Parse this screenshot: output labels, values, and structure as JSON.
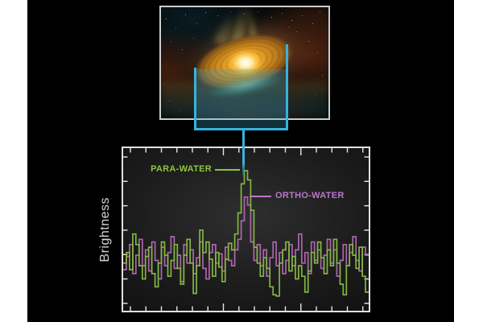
{
  "scene": {
    "page_background": "#ffffff",
    "figure_background": "#000000",
    "zoom_indicator_color": "#38b2dc",
    "zoom_indicator_fill": "rgba(56,170,205,0.28)",
    "plot_border_color": "#e0e0e0",
    "image_border_color": "#cdcdcd"
  },
  "chart_data": {
    "type": "line",
    "style": "step-histogram",
    "title": "",
    "xlabel": "",
    "ylabel": "Brightness",
    "grid": false,
    "x_tick_labels": [],
    "y_tick_labels": [],
    "ylim": [
      0,
      1.1
    ],
    "axes": {
      "x_ticks": 16,
      "y_ticks": 7,
      "major_x_ticks": [
        6,
        11
      ],
      "tick_color": "#e8e8e8"
    },
    "annotations": [
      {
        "text": "PARA-WATER",
        "color": "#8dc63f",
        "points_to": "green peak"
      },
      {
        "text": "ORTHO-WATER",
        "color": "#bb77cc",
        "points_to": "purple peak"
      }
    ],
    "series": [
      {
        "name": "PARA-WATER",
        "color": "#83b541",
        "values": [
          0.3,
          0.38,
          0.25,
          0.52,
          0.44,
          0.28,
          0.18,
          0.35,
          0.42,
          0.22,
          0.12,
          0.3,
          0.46,
          0.36,
          0.2,
          0.32,
          0.44,
          0.26,
          0.14,
          0.36,
          0.48,
          0.3,
          0.07,
          0.28,
          0.55,
          0.38,
          0.46,
          0.33,
          0.2,
          0.38,
          0.27,
          0.16,
          0.33,
          0.45,
          0.4,
          0.52,
          0.68,
          0.9,
          1.0,
          0.93,
          0.7,
          0.42,
          0.3,
          0.2,
          0.34,
          0.26,
          0.12,
          0.06,
          0.05,
          0.3,
          0.4,
          0.46,
          0.24,
          0.35,
          0.18,
          0.28,
          0.2,
          0.08,
          0.24,
          0.38,
          0.3,
          0.46,
          0.34,
          0.22,
          0.4,
          0.28,
          0.48,
          0.3,
          0.14,
          0.06,
          0.28,
          0.44,
          0.36,
          0.26,
          0.42,
          0.2,
          0.08
        ]
      },
      {
        "name": "ORTHO-WATER",
        "color": "#ad66ad",
        "values": [
          0.25,
          0.35,
          0.44,
          0.22,
          0.36,
          0.48,
          0.28,
          0.4,
          0.24,
          0.46,
          0.32,
          0.18,
          0.42,
          0.28,
          0.38,
          0.5,
          0.26,
          0.36,
          0.16,
          0.44,
          0.3,
          0.4,
          0.22,
          0.34,
          0.46,
          0.26,
          0.18,
          0.38,
          0.44,
          0.3,
          0.37,
          0.24,
          0.42,
          0.32,
          0.28,
          0.4,
          0.48,
          0.62,
          0.8,
          0.74,
          0.46,
          0.32,
          0.44,
          0.28,
          0.4,
          0.2,
          0.34,
          0.46,
          0.28,
          0.38,
          0.22,
          0.32,
          0.44,
          0.28,
          0.4,
          0.52,
          0.3,
          0.38,
          0.22,
          0.46,
          0.32,
          0.4,
          0.26,
          0.36,
          0.48,
          0.3,
          0.4,
          0.2,
          0.32,
          0.44,
          0.28,
          0.38,
          0.5,
          0.32,
          0.24,
          0.42,
          0.36
        ]
      }
    ]
  }
}
